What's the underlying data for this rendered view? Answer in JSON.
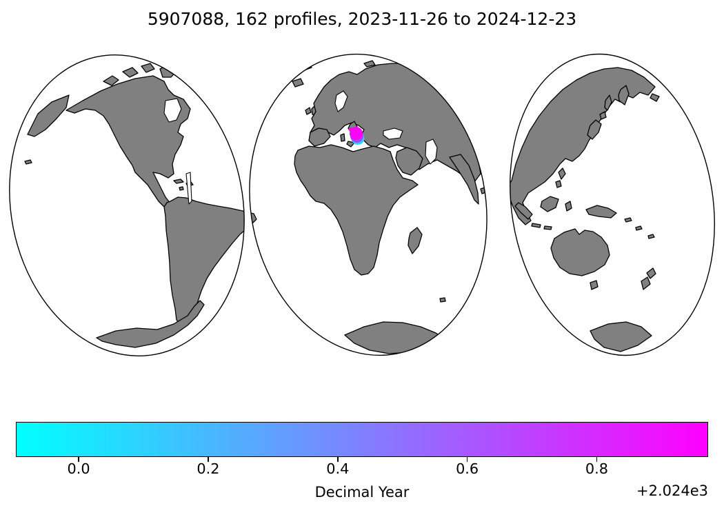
{
  "figure": {
    "title": "5907088, 162 profiles, 2023-11-26 to 2024-12-23",
    "background": "#ffffff"
  },
  "map": {
    "projection": "interrupted three-lobe world map",
    "land_color": "#808080",
    "coastline_color": "#000000",
    "ocean_color": "#ffffff",
    "profile_cluster": {
      "location": "Ionian Sea, central Mediterranean",
      "colors_bottom_to_top": [
        "#2cd3f0",
        "#8e53f8",
        "#fb03f3"
      ]
    }
  },
  "chart_data": {
    "type": "scatter",
    "title": "5907088, 162 profiles, 2023-11-26 to 2024-12-23",
    "float_id": "5907088",
    "n_profiles": 162,
    "date_start": "2023-11-26",
    "date_end": "2024-12-23",
    "basemap": "world coastlines in three oval lobes, gray land on white ocean",
    "points": {
      "description": "162 profile positions clustered in the Ionian Sea (~38N, 17E), colored by decimal year from cyan (late 2023) to magenta (late 2024)"
    },
    "colorbar": {
      "label": "Decimal Year",
      "offset_text": "+2.024e3",
      "colormap": "cool",
      "gradient_start": "#00ffff",
      "gradient_end": "#ff00ff",
      "vmin": 2023.903,
      "vmax": 2024.972,
      "ticks": [
        {
          "label": "0.0",
          "value": 2024.0
        },
        {
          "label": "0.2",
          "value": 2024.2
        },
        {
          "label": "0.4",
          "value": 2024.4
        },
        {
          "label": "0.6",
          "value": 2024.6
        },
        {
          "label": "0.8",
          "value": 2024.8
        }
      ],
      "legend_position": "bottom"
    }
  }
}
